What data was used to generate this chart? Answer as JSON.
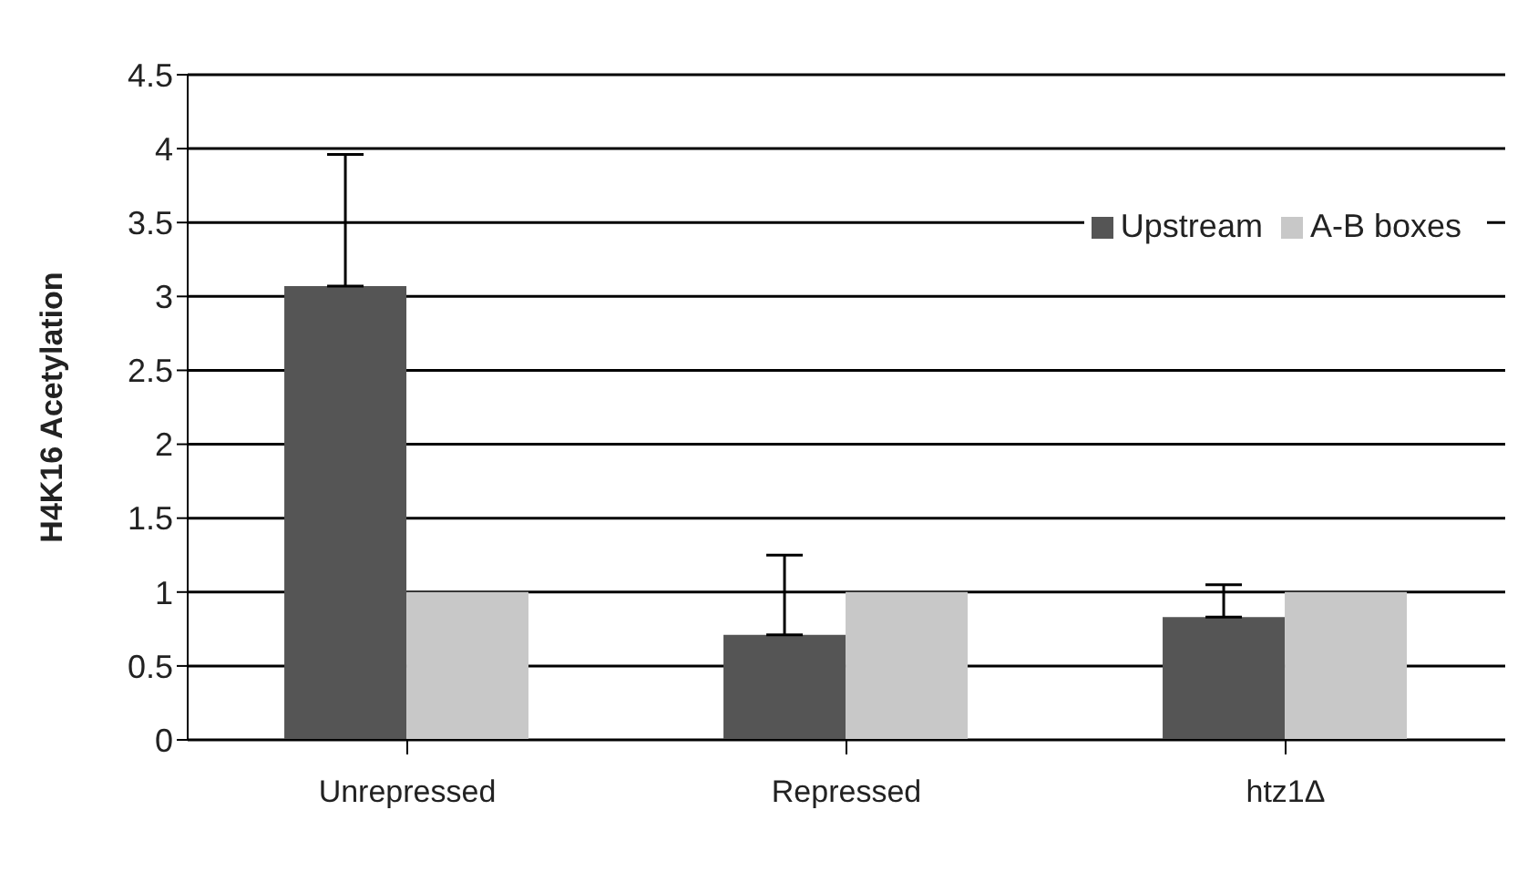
{
  "chart_data": {
    "type": "bar",
    "ylabel": "H4K16 Acetylation",
    "categories": [
      "Unrepressed",
      "Repressed",
      "htz1Δ"
    ],
    "series": [
      {
        "name": "Upstream",
        "color": "#555555",
        "values": [
          3.07,
          0.71,
          0.83
        ],
        "errors": [
          [
            3.07,
            3.96
          ],
          [
            0.71,
            1.25
          ],
          [
            0.83,
            1.05
          ]
        ]
      },
      {
        "name": "A-B boxes",
        "color": "#c8c8c8",
        "values": [
          1,
          1,
          1
        ]
      }
    ],
    "ylim": [
      0,
      4.5
    ],
    "yticks": [
      0,
      0.5,
      1,
      1.5,
      2,
      2.5,
      3,
      3.5,
      4,
      4.5
    ],
    "grid": "y",
    "legend": "top right"
  }
}
